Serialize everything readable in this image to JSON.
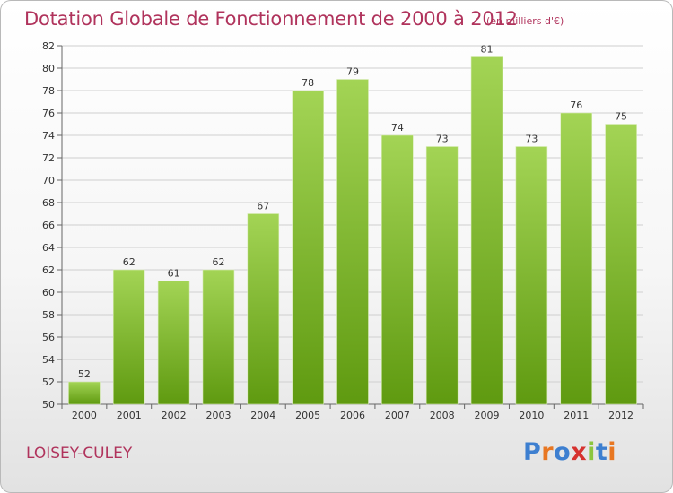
{
  "title": "Dotation Globale de Fonctionnement de 2000 à 2012",
  "subtitle": "(en milliers d'€)",
  "commune": "LOISEY-CULEY",
  "logo": {
    "text": "Proxiti",
    "letter_colors": [
      "#3d7fd0",
      "#e87722",
      "#3d7fd0",
      "#d6322f",
      "#8cc63f",
      "#3d7fd0",
      "#e87722"
    ]
  },
  "colors": {
    "title": "#b0335c",
    "bar_top": "#a3d455",
    "bar_bottom": "#5f9a10",
    "grid": "#cfcfcf"
  },
  "chart_data": {
    "type": "bar",
    "title": "Dotation Globale de Fonctionnement de 2000 à 2012",
    "subtitle": "(en milliers d'€)",
    "xlabel": "",
    "ylabel": "",
    "categories": [
      "2000",
      "2001",
      "2002",
      "2003",
      "2004",
      "2005",
      "2006",
      "2007",
      "2008",
      "2009",
      "2010",
      "2011",
      "2012"
    ],
    "values": [
      52,
      62,
      61,
      62,
      67,
      78,
      79,
      74,
      73,
      81,
      73,
      76,
      75
    ],
    "ylim": [
      50,
      82
    ],
    "yticks": [
      50,
      52,
      54,
      56,
      58,
      60,
      62,
      64,
      66,
      68,
      70,
      72,
      74,
      76,
      78,
      80,
      82
    ],
    "grid": true,
    "data_labels": true
  }
}
